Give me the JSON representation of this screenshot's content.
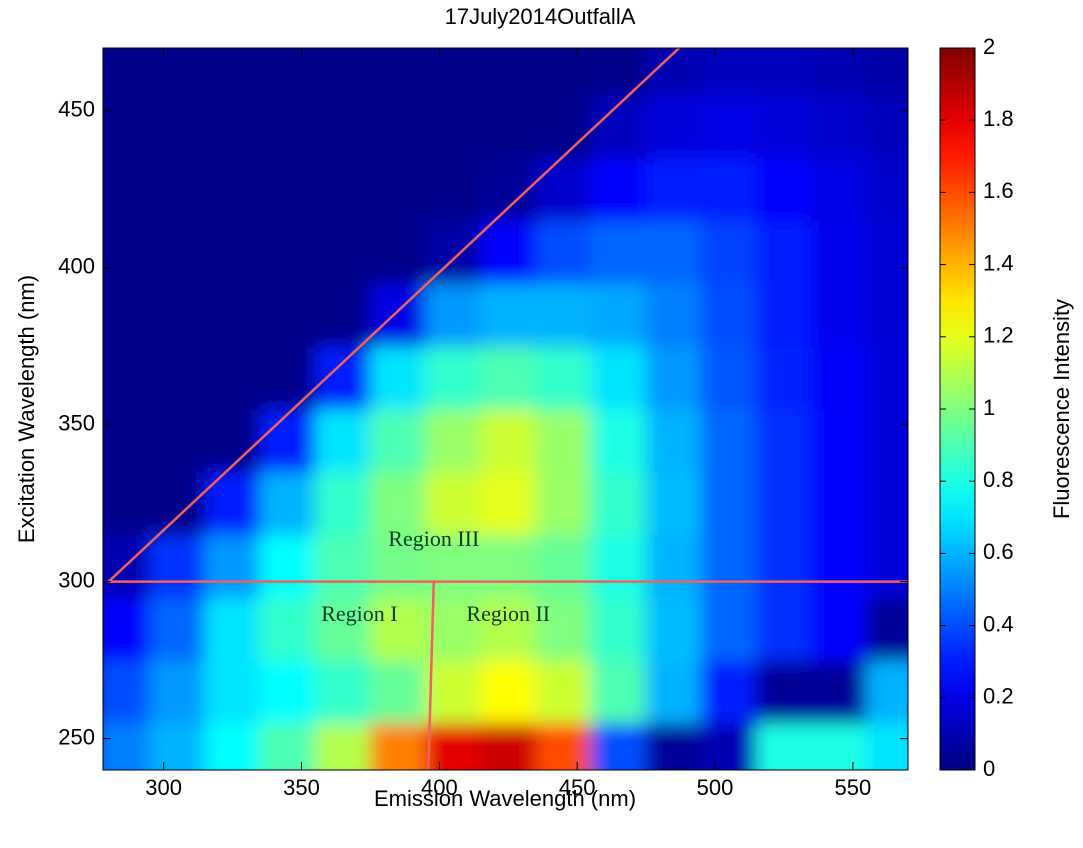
{
  "chart_data": {
    "type": "contour",
    "title": "17July2014OutfallA",
    "x_label": "Emission Wavelength (nm)",
    "y_label": "Excitation Wavelength (nm)",
    "colorbar_label": "Fluorescence Intensity",
    "colormap": "jet",
    "xlim": [
      278,
      570
    ],
    "ylim": [
      240,
      470
    ],
    "xticks": [
      300,
      350,
      400,
      450,
      500,
      550
    ],
    "yticks": [
      250,
      300,
      350,
      400,
      450
    ],
    "clim": [
      0,
      2
    ],
    "cticks": [
      0,
      0.2,
      0.4,
      0.6,
      0.8,
      1,
      1.2,
      1.4,
      1.6,
      1.8,
      2
    ],
    "x": [
      285,
      305,
      325,
      345,
      365,
      385,
      405,
      425,
      445,
      465,
      485,
      505,
      525,
      545,
      565
    ],
    "y": [
      245,
      265,
      285,
      305,
      325,
      345,
      365,
      385,
      405,
      425,
      445,
      465
    ],
    "z": [
      [
        0.5,
        0.6,
        0.75,
        0.9,
        1.1,
        1.5,
        1.8,
        1.85,
        1.6,
        0.4,
        0.05,
        0.1,
        0.8,
        0.8,
        0.7
      ],
      [
        0.4,
        0.55,
        0.7,
        0.75,
        0.85,
        0.95,
        1.15,
        1.25,
        1.15,
        0.9,
        0.6,
        0.3,
        0.05,
        0.05,
        0.6
      ],
      [
        0.25,
        0.45,
        0.7,
        0.85,
        0.95,
        1.1,
        1.05,
        1.1,
        1.0,
        0.85,
        0.62,
        0.45,
        0.34,
        0.25,
        0.05
      ],
      [
        0.1,
        0.35,
        0.55,
        0.75,
        0.9,
        0.98,
        1.0,
        1.0,
        0.95,
        0.8,
        0.6,
        0.45,
        0.34,
        0.25,
        0.18
      ],
      [
        0.02,
        0.02,
        0.3,
        0.6,
        0.85,
        1.0,
        1.15,
        1.2,
        1.05,
        0.85,
        0.62,
        0.45,
        0.34,
        0.25,
        0.18
      ],
      [
        0.02,
        0.02,
        0.02,
        0.3,
        0.7,
        0.9,
        1.05,
        1.15,
        1.05,
        0.8,
        0.6,
        0.45,
        0.34,
        0.25,
        0.18
      ],
      [
        0.02,
        0.02,
        0.02,
        0.02,
        0.3,
        0.7,
        0.85,
        0.9,
        0.85,
        0.7,
        0.55,
        0.42,
        0.32,
        0.24,
        0.18
      ],
      [
        0.02,
        0.02,
        0.02,
        0.02,
        0.02,
        0.2,
        0.55,
        0.6,
        0.6,
        0.58,
        0.5,
        0.4,
        0.3,
        0.22,
        0.17
      ],
      [
        0.02,
        0.02,
        0.02,
        0.02,
        0.02,
        0.02,
        0.08,
        0.25,
        0.4,
        0.45,
        0.45,
        0.38,
        0.3,
        0.22,
        0.17
      ],
      [
        0.02,
        0.02,
        0.02,
        0.02,
        0.02,
        0.02,
        0.02,
        0.05,
        0.15,
        0.25,
        0.3,
        0.3,
        0.25,
        0.2,
        0.15
      ],
      [
        0.02,
        0.02,
        0.02,
        0.02,
        0.02,
        0.02,
        0.02,
        0.02,
        0.02,
        0.12,
        0.18,
        0.2,
        0.18,
        0.15,
        0.12
      ],
      [
        0.02,
        0.02,
        0.02,
        0.02,
        0.02,
        0.02,
        0.02,
        0.02,
        0.02,
        0.02,
        0.1,
        0.12,
        0.12,
        0.1,
        0.08
      ]
    ],
    "lines": [
      {
        "x": [
          280,
          487
        ],
        "y": [
          300,
          470
        ],
        "color": "#f26060"
      },
      {
        "x": [
          280,
          570
        ],
        "y": [
          300,
          300
        ],
        "color": "#f26060"
      },
      {
        "x": [
          398,
          396
        ],
        "y": [
          300,
          240
        ],
        "color": "#f26060"
      }
    ],
    "annotations": [
      {
        "text": "Region III",
        "x": 398,
        "y": 313
      },
      {
        "text": "Region I",
        "x": 371,
        "y": 289
      },
      {
        "text": "Region II",
        "x": 425,
        "y": 289
      }
    ]
  }
}
